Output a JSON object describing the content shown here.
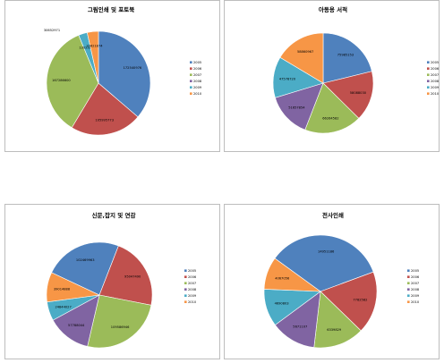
{
  "chart_data": [
    {
      "type": "pie",
      "title": "그림인쇄 및 포토북",
      "categories": [
        "2005",
        "2006",
        "2007",
        "2008",
        "2009",
        "2010"
      ],
      "values": [
        172540976,
        105995773,
        167286600,
        0,
        13023154,
        16621874
      ],
      "labels": [
        "172540976",
        "105995773",
        "167286600",
        "",
        "13023154",
        "16621874"
      ],
      "extra_labels": [
        "30652971"
      ],
      "legend": "right"
    },
    {
      "type": "pie",
      "title": "아동용 서적",
      "categories": [
        "2005",
        "2006",
        "2007",
        "2008",
        "2009",
        "2010"
      ],
      "values": [
        75985153,
        58088030,
        66264582,
        51657854,
        47578720,
        58860967
      ],
      "labels": [
        "75985153",
        "58088030",
        "66264582",
        "51657854",
        "47578720",
        "58860967"
      ],
      "legend": "right"
    },
    {
      "type": "pie",
      "title": "신문,잡지 및 연감",
      "categories": [
        "2005",
        "2006",
        "2007",
        "2008",
        "2009",
        "2010"
      ],
      "values": [
        102469963,
        95047490,
        109586946,
        57788044,
        24844027,
        39014888
      ],
      "labels": [
        "102469963",
        "95047490",
        "109586946",
        "57788044",
        "24844027",
        "39014888"
      ],
      "legend": "right"
    },
    {
      "type": "pie",
      "title": "전사인쇄",
      "categories": [
        "2005",
        "2006",
        "2007",
        "2008",
        "2009",
        "2010"
      ],
      "values": [
        14951186,
        7782582,
        6339829,
        5671107,
        4690803,
        4067056
      ],
      "labels": [
        "14951186",
        "7782582",
        "6339829",
        "5671107",
        "4690803",
        "4067056"
      ],
      "legend": "right"
    }
  ],
  "colors": [
    "#4F81BD",
    "#C0504D",
    "#9BBB59",
    "#8064A2",
    "#4BACC6",
    "#F79646"
  ]
}
